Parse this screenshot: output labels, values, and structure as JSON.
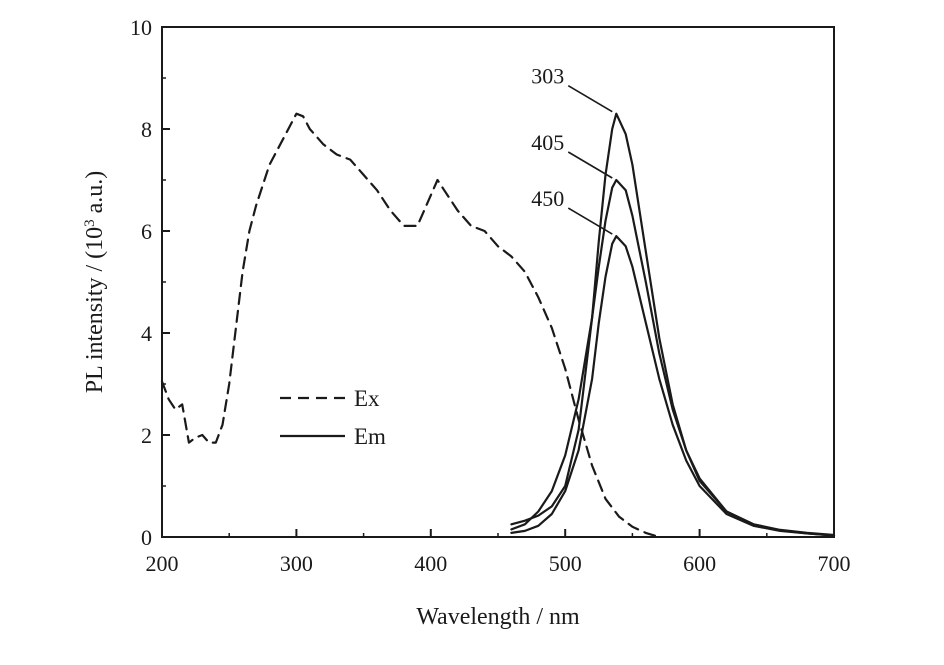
{
  "chart_data": {
    "type": "line",
    "title": "",
    "xlabel": "Wavelength / nm",
    "ylabel": {
      "before": "PL intensity / (10",
      "sup": "3",
      "after": " a.u.)"
    },
    "xlim": [
      200,
      700
    ],
    "ylim": [
      0,
      10
    ],
    "xticks": [
      "200",
      "300",
      "400",
      "500",
      "600",
      "700"
    ],
    "yticks": [
      "0",
      "2",
      "4",
      "6",
      "8",
      "10"
    ],
    "grid": false,
    "legend": {
      "placement": "center-left",
      "entries": [
        {
          "label": "Ex",
          "style": "dashed"
        },
        {
          "label": "Em",
          "style": "solid"
        }
      ]
    },
    "series": [
      {
        "name": "Ex",
        "style": "dashed",
        "color": "#1a1a1a",
        "x": [
          200,
          205,
          210,
          215,
          220,
          225,
          230,
          235,
          240,
          245,
          250,
          255,
          260,
          265,
          270,
          280,
          290,
          300,
          305,
          310,
          320,
          330,
          340,
          350,
          360,
          370,
          380,
          390,
          400,
          405,
          410,
          420,
          430,
          440,
          450,
          460,
          470,
          480,
          490,
          500,
          510,
          520,
          530,
          540,
          550,
          560,
          570
        ],
        "y": [
          3.05,
          2.7,
          2.5,
          2.6,
          1.85,
          1.95,
          2.0,
          1.85,
          1.85,
          2.2,
          3.0,
          4.1,
          5.2,
          6.0,
          6.5,
          7.3,
          7.8,
          8.3,
          8.25,
          8.0,
          7.7,
          7.5,
          7.4,
          7.1,
          6.8,
          6.4,
          6.1,
          6.1,
          6.7,
          7.0,
          6.8,
          6.4,
          6.1,
          6.0,
          5.7,
          5.5,
          5.2,
          4.7,
          4.1,
          3.3,
          2.3,
          1.4,
          0.75,
          0.4,
          0.2,
          0.08,
          0.0
        ]
      },
      {
        "name": "Em",
        "style": "solid",
        "color": "#1a1a1a",
        "excitation": "303",
        "x": [
          460,
          470,
          480,
          490,
          500,
          510,
          520,
          525,
          530,
          535,
          538,
          545,
          550,
          560,
          570,
          580,
          590,
          600,
          620,
          640,
          660,
          680,
          700
        ],
        "y": [
          0.25,
          0.32,
          0.42,
          0.6,
          1.0,
          2.1,
          4.3,
          5.8,
          7.1,
          8.0,
          8.3,
          7.9,
          7.3,
          5.6,
          3.9,
          2.6,
          1.7,
          1.1,
          0.5,
          0.25,
          0.13,
          0.07,
          0.03
        ]
      },
      {
        "name": "Em",
        "style": "solid",
        "color": "#1a1a1a",
        "excitation": "405",
        "x": [
          460,
          470,
          480,
          490,
          500,
          510,
          520,
          525,
          530,
          535,
          538,
          545,
          550,
          560,
          570,
          580,
          590,
          600,
          620,
          640,
          660,
          680,
          700
        ],
        "y": [
          0.15,
          0.25,
          0.5,
          0.9,
          1.6,
          2.7,
          4.3,
          5.3,
          6.2,
          6.85,
          7.0,
          6.8,
          6.3,
          5.0,
          3.6,
          2.5,
          1.7,
          1.15,
          0.5,
          0.25,
          0.14,
          0.08,
          0.04
        ]
      },
      {
        "name": "Em",
        "style": "solid",
        "color": "#1a1a1a",
        "excitation": "450",
        "x": [
          460,
          470,
          480,
          490,
          500,
          510,
          520,
          525,
          530,
          535,
          538,
          545,
          550,
          560,
          570,
          580,
          590,
          600,
          620,
          640,
          660,
          680,
          700
        ],
        "y": [
          0.08,
          0.12,
          0.22,
          0.45,
          0.9,
          1.7,
          3.1,
          4.2,
          5.1,
          5.75,
          5.9,
          5.7,
          5.3,
          4.2,
          3.1,
          2.2,
          1.5,
          1.0,
          0.45,
          0.22,
          0.12,
          0.07,
          0.03
        ]
      }
    ],
    "annotations": [
      {
        "text": "303",
        "target_x": 538,
        "target_y": 8.3
      },
      {
        "text": "405",
        "target_x": 538,
        "target_y": 7.0
      },
      {
        "text": "450",
        "target_x": 538,
        "target_y": 5.9
      }
    ]
  }
}
